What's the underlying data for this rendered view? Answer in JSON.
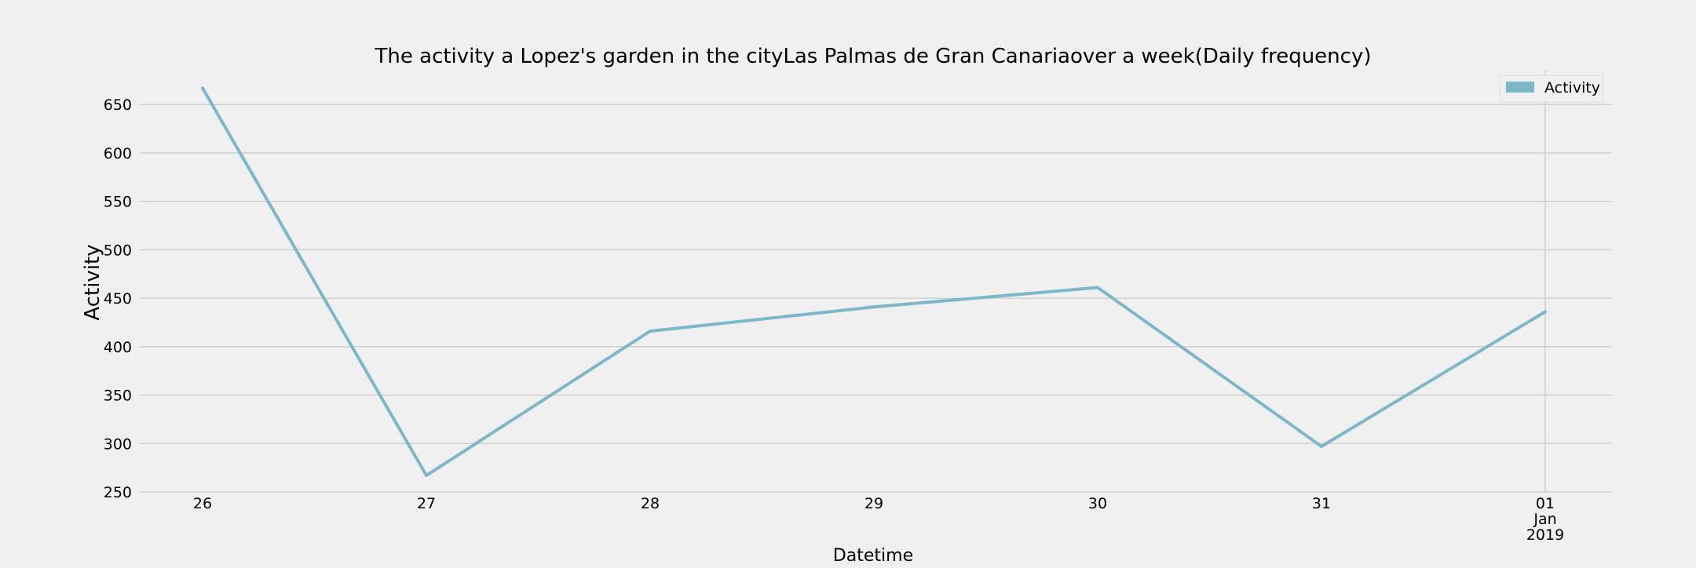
{
  "colors": {
    "background": "#f0f0f0",
    "line": "#7cb8c9",
    "grid": "#cbcbcb",
    "text": "#000000"
  },
  "chart_data": {
    "type": "line",
    "title": "The activity a Lopez's garden in the cityLas Palmas de Gran Canariaover a week(Daily frequency)",
    "xlabel": "Datetime",
    "ylabel": "Activity",
    "x": [
      "2018-12-26",
      "2018-12-27",
      "2018-12-28",
      "2018-12-29",
      "2018-12-30",
      "2018-12-31",
      "2019-01-01"
    ],
    "x_tick_labels": [
      [
        "26"
      ],
      [
        "27"
      ],
      [
        "28"
      ],
      [
        "29"
      ],
      [
        "30"
      ],
      [
        "31"
      ],
      [
        "01",
        "Jan",
        "2019"
      ]
    ],
    "series": [
      {
        "name": "Activity",
        "values": [
          667,
          267,
          416,
          441,
          461,
          297,
          436
        ]
      }
    ],
    "ylim": [
      250,
      685
    ],
    "y_ticks": [
      250,
      300,
      350,
      400,
      450,
      500,
      550,
      600,
      650
    ],
    "grid": "horizontal",
    "legend": "top-right"
  }
}
